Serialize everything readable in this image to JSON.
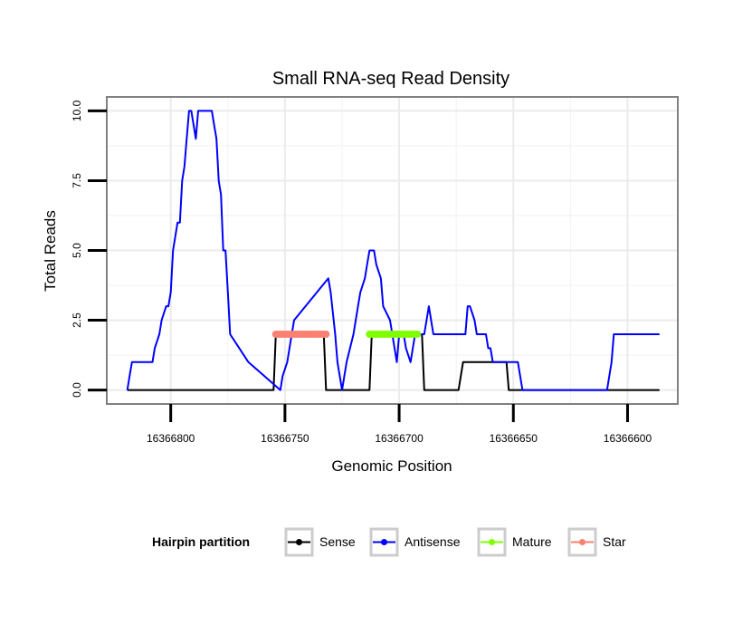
{
  "chart_data": {
    "type": "line",
    "title": "Small RNA-seq Read Density",
    "xlabel": "Genomic Position",
    "ylabel": "Total Reads",
    "xlim": [
      16366828,
      16366578
    ],
    "x_reversed": true,
    "ylim": [
      -0.5,
      10.5
    ],
    "xticks": [
      16366800,
      16366750,
      16366700,
      16366650,
      16366600
    ],
    "yticks": [
      0,
      2.5,
      5,
      7.5,
      10
    ],
    "ytick_labels": [
      "0.0",
      "2.5",
      "5.0",
      "7.5",
      "10.0"
    ],
    "grid": true,
    "legend": {
      "title": "Hairpin partition",
      "position": "bottom",
      "entries": [
        "Sense",
        "Antisense",
        "Mature",
        "Star"
      ]
    },
    "series": [
      {
        "name": "Sense",
        "color": "#000000",
        "style": "line",
        "x": [
          16366819,
          16366755,
          16366754,
          16366733,
          16366732,
          16366713,
          16366712,
          16366690,
          16366689,
          16366674,
          16366672,
          16366653,
          16366652,
          16366586
        ],
        "y": [
          0,
          0,
          2,
          2,
          0,
          0,
          2,
          2,
          0,
          0,
          1,
          1,
          0,
          0
        ]
      },
      {
        "name": "Antisense",
        "color": "#0000ff",
        "style": "line",
        "x": [
          16366819,
          16366818,
          16366817,
          16366808,
          16366807,
          16366805,
          16366804,
          16366802,
          16366801,
          16366800,
          16366799,
          16366797,
          16366796,
          16366795,
          16366794,
          16366793,
          16366792,
          16366791,
          16366790,
          16366789,
          16366788,
          16366787,
          16366786,
          16366785,
          16366784,
          16366783,
          16366782,
          16366781,
          16366780,
          16366779,
          16366778,
          16366777,
          16366776,
          16366775,
          16366774,
          16366766,
          16366752,
          16366751,
          16366749,
          16366748,
          16366747,
          16366746,
          16366731,
          16366730,
          16366728,
          16366727,
          16366725,
          16366724,
          16366723,
          16366720,
          16366719,
          16366718,
          16366717,
          16366715,
          16366714,
          16366713,
          16366711,
          16366710,
          16366708,
          16366707,
          16366704,
          16366703,
          16366702,
          16366701,
          16366700,
          16366698,
          16366697,
          16366695,
          16366694,
          16366693,
          16366691,
          16366690,
          16366689,
          16366688,
          16366687,
          16366686,
          16366685,
          16366671,
          16366670,
          16366669,
          16366667,
          16366666,
          16366665,
          16366663,
          16366662,
          16366661,
          16366660,
          16366659,
          16366657,
          16366648,
          16366647,
          16366646,
          16366624,
          16366609,
          16366608,
          16366607,
          16366606,
          16366586
        ],
        "y": [
          0,
          0.5,
          1,
          1,
          1.5,
          2,
          2.5,
          3,
          3,
          3.5,
          5,
          6,
          6,
          7.5,
          8,
          9,
          10,
          10,
          9.5,
          9,
          10,
          10,
          10,
          10,
          10,
          10,
          10,
          9.5,
          9,
          7.5,
          7,
          5,
          5,
          3.5,
          2,
          1,
          0,
          0.5,
          1,
          1.5,
          2,
          2.5,
          4,
          3.5,
          2,
          1,
          0,
          0.5,
          1,
          2,
          2.5,
          3,
          3.5,
          4,
          4.5,
          5,
          5,
          4.5,
          4,
          3,
          2.5,
          2,
          1.5,
          1,
          2,
          2,
          1.5,
          1,
          1.5,
          2,
          2,
          2,
          2,
          2.5,
          3,
          2.5,
          2,
          2,
          3,
          3,
          2.5,
          2,
          2,
          2,
          2,
          1.5,
          1.5,
          1,
          1,
          1,
          0.5,
          0,
          0,
          0,
          0.5,
          1,
          2,
          2
        ]
      },
      {
        "name": "Mature",
        "color": "#7fff00",
        "style": "points",
        "x_range": [
          16366713,
          16366692
        ],
        "y": 2
      },
      {
        "name": "Star",
        "color": "#fa8072",
        "style": "points",
        "x_range": [
          16366754,
          16366732
        ],
        "y": 2
      }
    ]
  }
}
